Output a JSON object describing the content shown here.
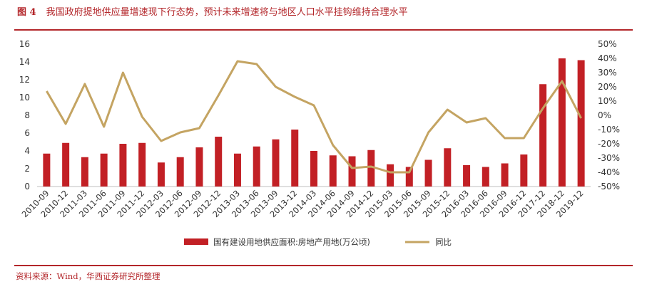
{
  "figure": {
    "number": "图 4",
    "title": "我国政府提地供应量增速现下行态势，预计未来增速将与地区人口水平挂钩维持合理水平",
    "source": "资料来源：Wind，华西证券研究所整理"
  },
  "colors": {
    "bar": "#c22025",
    "line": "#c4a462",
    "accent": "#b3262a"
  },
  "chart_data": {
    "type": "bar",
    "categories": [
      "2010-09",
      "2010-12",
      "2011-03",
      "2011-06",
      "2011-09",
      "2011-12",
      "2012-03",
      "2012-06",
      "2012-09",
      "2012-12",
      "2013-03",
      "2013-06",
      "2013-09",
      "2013-12",
      "2014-03",
      "2014-06",
      "2014-09",
      "2014-12",
      "2015-03",
      "2015-06",
      "2015-09",
      "2015-12",
      "2016-03",
      "2016-06",
      "2016-09",
      "2016-12",
      "2017-12",
      "2018-12",
      "2019-12"
    ],
    "series": [
      {
        "name": "国有建设用地供应面积:房地产用地(万公顷)",
        "type": "bar",
        "axis": "left",
        "values": [
          3.7,
          4.9,
          3.3,
          3.7,
          4.8,
          4.9,
          2.7,
          3.3,
          4.4,
          5.6,
          3.7,
          4.5,
          5.3,
          6.4,
          4.0,
          3.5,
          3.4,
          4.1,
          2.5,
          2.2,
          3.0,
          4.3,
          2.4,
          2.2,
          2.6,
          3.6,
          11.5,
          14.4,
          14.2
        ]
      },
      {
        "name": "同比",
        "type": "line",
        "axis": "right",
        "values": [
          17,
          -6,
          22,
          -8,
          30,
          -1,
          -18,
          -12,
          -9,
          14,
          38,
          36,
          20,
          13,
          7,
          -21,
          -37,
          -36,
          -40,
          -40,
          -12,
          4,
          -5,
          -2,
          -16,
          -16,
          5,
          24,
          -2
        ]
      }
    ],
    "left_axis": {
      "min": 0,
      "max": 16,
      "ticks": [
        0,
        2,
        4,
        6,
        8,
        10,
        12,
        14,
        16
      ]
    },
    "right_axis": {
      "min": -50,
      "max": 50,
      "ticks": [
        "50%",
        "40%",
        "30%",
        "20%",
        "10%",
        "0%",
        "-10%",
        "-20%",
        "-30%",
        "-40%",
        "-50%"
      ]
    },
    "legend_position": "bottom",
    "grid": false
  }
}
